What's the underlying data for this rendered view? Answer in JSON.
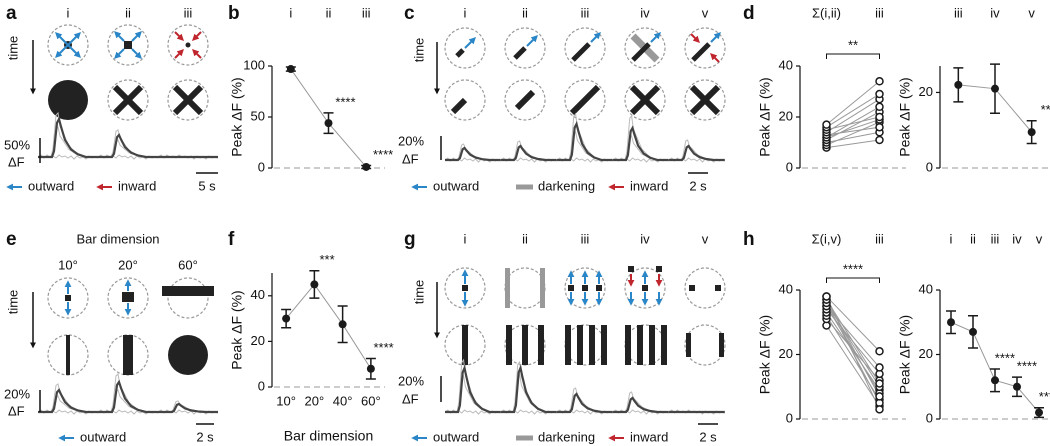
{
  "panels": {
    "a": {
      "letter": "a",
      "columns": [
        "i",
        "ii",
        "iii"
      ],
      "time": "time",
      "scale_y": [
        "50%",
        "ΔF"
      ],
      "scale_x": "5 s",
      "legend": [
        "outward",
        "inward"
      ]
    },
    "c": {
      "letter": "c",
      "columns": [
        "i",
        "ii",
        "iii",
        "iv",
        "v"
      ],
      "time": "time",
      "scale_y": [
        "20%",
        "ΔF"
      ],
      "scale_x": "2 s",
      "legend": [
        "outward",
        "darkening",
        "inward"
      ]
    },
    "e": {
      "letter": "e",
      "title": "Bar dimension",
      "columns": [
        "10°",
        "20°",
        "60°"
      ],
      "time": "time",
      "scale_y": [
        "20%",
        "ΔF"
      ],
      "scale_x": "2 s",
      "legend": [
        "outward"
      ]
    },
    "g": {
      "letter": "g",
      "columns": [
        "i",
        "ii",
        "iii",
        "iv",
        "v"
      ],
      "time": "time",
      "scale_y": [
        "20%",
        "ΔF"
      ],
      "scale_x": "2 s",
      "legend": [
        "outward",
        "darkening",
        "inward"
      ]
    }
  },
  "chart_data": [
    {
      "type": "errorbar",
      "panel": "b",
      "ylabel": "Peak ΔF (%)",
      "category_axis": "top",
      "categories": [
        "i",
        "ii",
        "iii"
      ],
      "values": [
        97,
        44,
        1
      ],
      "errors": [
        2,
        10,
        1.5
      ],
      "sig": [
        null,
        "****",
        "****"
      ],
      "ylim": [
        0,
        100
      ],
      "yticks": [
        0,
        50,
        100
      ],
      "zero_line": true,
      "color": "#1a1a1a",
      "line_color": "#999999"
    },
    {
      "type": "paired",
      "panel": "d",
      "ylabel": "Peak ΔF (%)",
      "category_axis": "top",
      "categories": [
        "Σ(i,ii)",
        "iii"
      ],
      "groups": [
        {
          "values": [
            8,
            9,
            10,
            11,
            12,
            12,
            13,
            14,
            15,
            16,
            17
          ]
        },
        {
          "values": [
            11,
            18,
            14,
            22,
            19,
            24,
            16,
            27,
            20,
            29,
            34
          ]
        }
      ],
      "sig": "**",
      "ylim": [
        0,
        40
      ],
      "yticks": [
        0,
        20,
        40
      ],
      "zero_line": true,
      "color": "#1a1a1a",
      "line_color": "#999999"
    },
    {
      "type": "errorbar",
      "ylabel": "Peak ΔF (%)",
      "category_axis": "top",
      "categories": [
        "iii",
        "iv",
        "v"
      ],
      "values": [
        22,
        21,
        9.5
      ],
      "errors": [
        4.5,
        6.5,
        3
      ],
      "sig": [
        null,
        null,
        "***"
      ],
      "ylim": [
        0,
        27
      ],
      "yticks": [
        0,
        20
      ],
      "zero_line": true,
      "color": "#1a1a1a",
      "line_color": "#999999"
    },
    {
      "type": "errorbar",
      "panel": "f",
      "ylabel": "Peak ΔF (%)",
      "xlabel": "Bar dimension",
      "category_axis": "bottom",
      "categories": [
        "10°",
        "20°",
        "40°",
        "60°"
      ],
      "values": [
        30,
        45,
        27.5,
        8
      ],
      "errors": [
        4,
        6,
        8,
        4.5
      ],
      "sig": [
        null,
        "***",
        null,
        "****"
      ],
      "ylim": [
        0,
        50
      ],
      "yticks": [
        0,
        20,
        40
      ],
      "zero_line": true,
      "color": "#1a1a1a",
      "line_color": "#999999"
    },
    {
      "type": "paired",
      "panel": "h",
      "ylabel": "Peak ΔF (%)",
      "category_axis": "top",
      "categories": [
        "Σ(i,v)",
        "iii"
      ],
      "groups": [
        {
          "values": [
            29,
            31,
            32,
            33,
            34,
            35,
            35,
            36,
            36,
            37,
            37,
            38,
            38
          ]
        },
        {
          "values": [
            4,
            12,
            6,
            9,
            14,
            8,
            16,
            10,
            5,
            7,
            11,
            3,
            21
          ]
        }
      ],
      "sig": "****",
      "ylim": [
        0,
        40
      ],
      "yticks": [
        0,
        20,
        40
      ],
      "zero_line": true,
      "color": "#1a1a1a",
      "line_color": "#999999"
    },
    {
      "type": "errorbar",
      "ylabel": "Peak ΔF (%)",
      "category_axis": "top",
      "categories": [
        "i",
        "ii",
        "iii",
        "iv",
        "v"
      ],
      "values": [
        30,
        27,
        12,
        10,
        2
      ],
      "errors": [
        3.5,
        5,
        3.5,
        3,
        1.5
      ],
      "sig": [
        null,
        null,
        "****",
        "****",
        "****"
      ],
      "ylim": [
        0,
        40
      ],
      "yticks": [
        0,
        20,
        40
      ],
      "zero_line": true,
      "color": "#1a1a1a",
      "line_color": "#999999"
    }
  ]
}
